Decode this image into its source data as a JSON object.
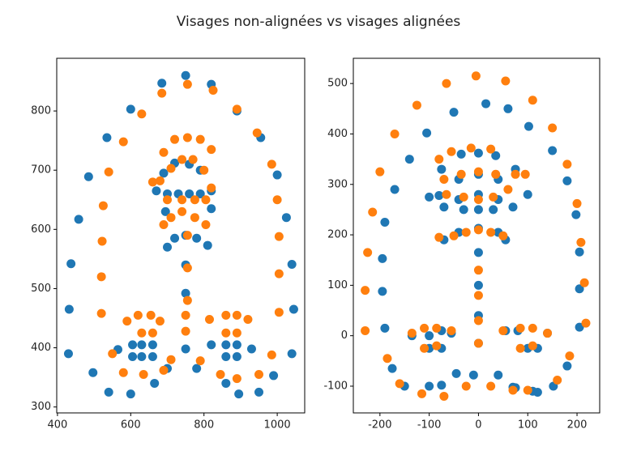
{
  "title": "Visages non-alignées vs visages alignées",
  "chart_data": [
    {
      "type": "scatter",
      "xlim": [
        398,
        1075
      ],
      "ylim": [
        290,
        889
      ],
      "xticks": [
        400,
        600,
        800,
        1000
      ],
      "yticks": [
        300,
        400,
        500,
        600,
        700,
        800
      ],
      "series": [
        {
          "color": "#1f77b4",
          "x": [
            430,
            432,
            437,
            458,
            485,
            535,
            600,
            685,
            750,
            820,
            890,
            955,
            1000,
            1025,
            1040,
            1045,
            1040,
            497,
            540,
            600,
            665,
            860,
            895,
            950,
            990,
            565,
            605,
            630,
            660,
            605,
            630,
            660,
            700,
            750,
            780,
            820,
            860,
            890,
            930,
            860,
            890,
            750,
            750,
            750,
            700,
            720,
            780,
            810,
            820,
            820,
            790,
            760,
            720,
            690,
            670,
            695,
            700,
            730,
            760,
            790
          ],
          "values": [
            390,
            465,
            542,
            617,
            689,
            755,
            803,
            847,
            860,
            845,
            800,
            755,
            692,
            620,
            541,
            465,
            390,
            358,
            325,
            322,
            340,
            340,
            322,
            325,
            353,
            397,
            405,
            405,
            405,
            385,
            385,
            385,
            365,
            398,
            365,
            405,
            405,
            405,
            398,
            385,
            385,
            492,
            540,
            590,
            570,
            585,
            585,
            573,
            635,
            665,
            700,
            710,
            712,
            695,
            665,
            630,
            660,
            660,
            660,
            660
          ]
        },
        {
          "color": "#ff7f0e",
          "x": [
            520,
            520,
            522,
            525,
            540,
            580,
            630,
            685,
            755,
            825,
            890,
            945,
            985,
            1000,
            1005,
            1005,
            1005,
            550,
            580,
            635,
            690,
            710,
            790,
            845,
            890,
            950,
            985,
            590,
            620,
            655,
            680,
            630,
            660,
            750,
            750,
            815,
            860,
            890,
            920,
            860,
            890,
            755,
            755,
            755,
            690,
            710,
            740,
            775,
            805,
            820,
            800,
            770,
            740,
            710,
            680,
            660,
            700,
            740,
            775,
            805,
            690,
            720,
            755,
            790,
            820
          ],
          "values": [
            458,
            520,
            580,
            640,
            697,
            748,
            795,
            830,
            845,
            835,
            803,
            763,
            710,
            650,
            588,
            525,
            460,
            390,
            358,
            355,
            362,
            380,
            378,
            355,
            348,
            355,
            388,
            445,
            455,
            455,
            445,
            425,
            425,
            455,
            428,
            448,
            455,
            455,
            448,
            425,
            425,
            480,
            535,
            590,
            608,
            620,
            630,
            620,
            608,
            670,
            700,
            718,
            718,
            703,
            682,
            680,
            650,
            650,
            650,
            650,
            730,
            752,
            755,
            752,
            735
          ]
        }
      ]
    },
    {
      "type": "scatter",
      "xlim": [
        -254,
        246
      ],
      "ylim": [
        -153,
        550
      ],
      "xticks": [
        -200,
        -100,
        0,
        100,
        200
      ],
      "yticks": [
        -100,
        0,
        100,
        200,
        300,
        400,
        500
      ],
      "series": [
        {
          "color": "#1f77b4",
          "x": [
            -190,
            -195,
            -195,
            -190,
            -170,
            -140,
            -105,
            -50,
            15,
            60,
            102,
            150,
            180,
            198,
            205,
            205,
            205,
            180,
            152,
            120,
            75,
            -10,
            -175,
            -150,
            -100,
            -75,
            -45,
            40,
            70,
            110,
            -135,
            -100,
            -75,
            -55,
            -100,
            -75,
            55,
            80,
            100,
            120,
            140,
            0,
            0,
            0,
            0,
            -70,
            -40,
            0,
            40,
            55,
            -70,
            -40,
            0,
            40,
            70,
            -40,
            0,
            40,
            -80,
            -100,
            -75,
            -35,
            0,
            35,
            75,
            100,
            -30,
            0,
            30
          ],
          "values": [
            15,
            88,
            153,
            225,
            290,
            350,
            402,
            443,
            460,
            450,
            415,
            367,
            307,
            240,
            166,
            93,
            17,
            -60,
            -100,
            -112,
            -103,
            -78,
            -65,
            -100,
            -100,
            -98,
            -75,
            -78,
            -102,
            -110,
            0,
            0,
            10,
            5,
            -25,
            -25,
            10,
            10,
            -25,
            -25,
            5,
            40,
            100,
            165,
            -15,
            190,
            205,
            213,
            205,
            190,
            255,
            270,
            280,
            270,
            255,
            310,
            320,
            310,
            278,
            275,
            330,
            360,
            362,
            357,
            330,
            280,
            250,
            250,
            250
          ]
        },
        {
          "color": "#ff7f0e",
          "x": [
            -230,
            -230,
            -225,
            -215,
            -200,
            -170,
            -125,
            -65,
            -5,
            55,
            110,
            150,
            180,
            200,
            208,
            215,
            218,
            185,
            160,
            100,
            70,
            25,
            -25,
            -70,
            -115,
            -160,
            -185,
            -135,
            -110,
            -85,
            -55,
            -110,
            -85,
            50,
            85,
            110,
            140,
            85,
            110,
            0,
            0,
            0,
            0,
            -80,
            -50,
            -25,
            0,
            25,
            50,
            60,
            -65,
            -70,
            -30,
            0,
            30,
            -35,
            0,
            35,
            -80,
            -55,
            -15,
            25,
            75,
            95
          ],
          "values": [
            10,
            90,
            165,
            245,
            325,
            400,
            457,
            500,
            515,
            505,
            467,
            412,
            340,
            262,
            185,
            105,
            25,
            -40,
            -88,
            -108,
            -108,
            -100,
            -100,
            -120,
            -115,
            -95,
            -45,
            5,
            15,
            15,
            10,
            -25,
            -20,
            10,
            15,
            15,
            5,
            -25,
            -20,
            130,
            80,
            30,
            -15,
            195,
            198,
            205,
            210,
            205,
            198,
            290,
            280,
            310,
            275,
            270,
            275,
            320,
            325,
            320,
            350,
            365,
            372,
            370,
            320,
            320
          ]
        }
      ]
    }
  ]
}
